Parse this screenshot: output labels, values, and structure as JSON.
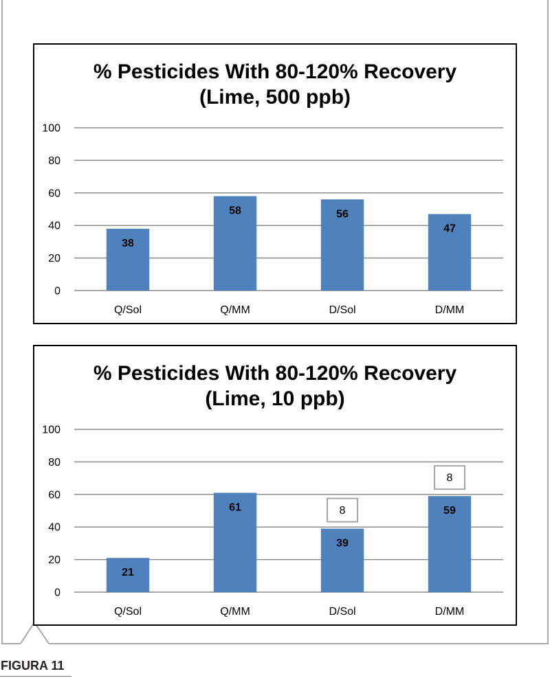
{
  "caption": "FIGURA 11",
  "chart_data": [
    {
      "type": "bar",
      "title": "% Pesticides With 80-120% Recovery",
      "subtitle": "(Lime, 500 ppb)",
      "categories": [
        "Q/Sol",
        "Q/MM",
        "D/Sol",
        "D/MM"
      ],
      "values": [
        38,
        58,
        56,
        47
      ],
      "color": "#4F81BD",
      "ylim": [
        0,
        100
      ],
      "yticks": [
        0,
        20,
        40,
        60,
        80,
        100
      ],
      "data_labels": true,
      "grid": true,
      "legend": "none"
    },
    {
      "type": "bar",
      "title": "% Pesticides With 80-120% Recovery",
      "subtitle": "(Lime, 10 ppb)",
      "categories": [
        "Q/Sol",
        "Q/MM",
        "D/Sol",
        "D/MM"
      ],
      "values": [
        21,
        61,
        39,
        59
      ],
      "color": "#4F81BD",
      "ylim": [
        0,
        100
      ],
      "yticks": [
        0,
        20,
        40,
        60,
        80,
        100
      ],
      "data_labels": true,
      "grid": true,
      "legend": "none",
      "annotations": [
        {
          "category": "D/Sol",
          "text": "8"
        },
        {
          "category": "D/MM",
          "text": "8"
        }
      ]
    }
  ]
}
